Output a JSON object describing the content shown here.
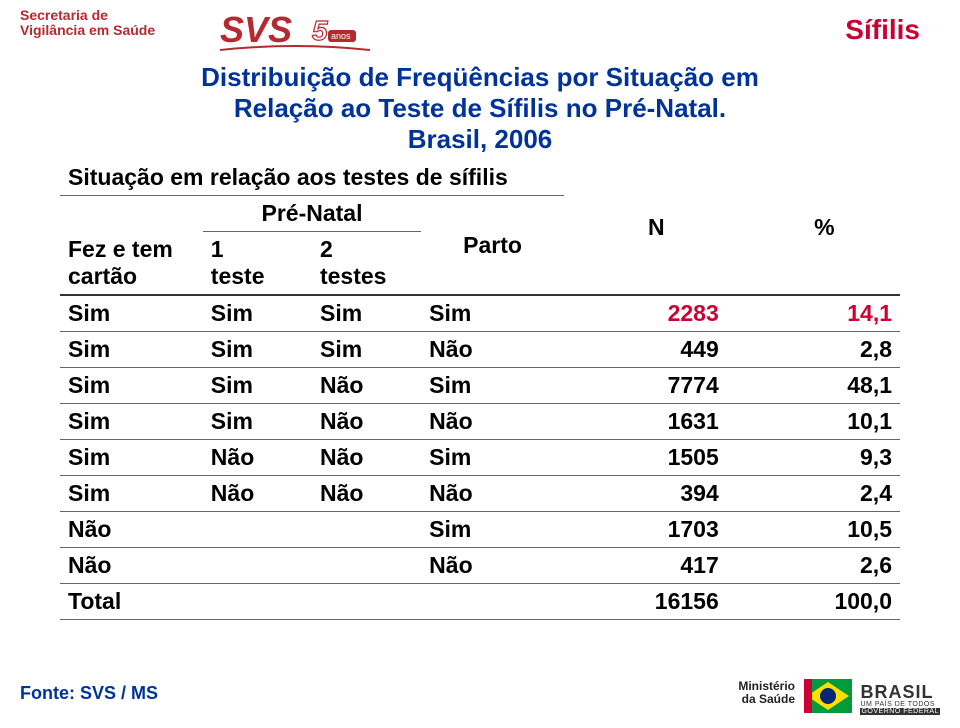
{
  "header": {
    "org_line1": "Secretaria de",
    "org_line2": "Vigilância em Saúde",
    "svs_text": "SVS",
    "svs_badge": "anos",
    "corner_badge": "Sífilis"
  },
  "title": {
    "line1": "Distribuição de Freqüências por Situação em",
    "line2": "Relação ao Teste de Sífilis no Pré-Natal.",
    "line3": "Brasil, 2006"
  },
  "table": {
    "group_header": "Situação em relação aos testes de sífilis",
    "sub_group": "Pré-Natal",
    "col1_line1": "Fez e tem",
    "col1_line2": "cartão",
    "col2_line1": "1",
    "col2_line2": "teste",
    "col3_line1": "2",
    "col3_line2": "testes",
    "col4": "Parto",
    "col5": "N",
    "col6": "%",
    "rows": [
      {
        "c1": "Sim",
        "c2": "Sim",
        "c3": "Sim",
        "c4": "Sim",
        "n": "2283",
        "p": "14,1",
        "highlight": true
      },
      {
        "c1": "Sim",
        "c2": "Sim",
        "c3": "Sim",
        "c4": "Não",
        "n": "449",
        "p": "2,8",
        "highlight": false
      },
      {
        "c1": "Sim",
        "c2": "Sim",
        "c3": "Não",
        "c4": "Sim",
        "n": "7774",
        "p": "48,1",
        "highlight": false
      },
      {
        "c1": "Sim",
        "c2": "Sim",
        "c3": "Não",
        "c4": "Não",
        "n": "1631",
        "p": "10,1",
        "highlight": false
      },
      {
        "c1": "Sim",
        "c2": "Não",
        "c3": "Não",
        "c4": "Sim",
        "n": "1505",
        "p": "9,3",
        "highlight": false
      },
      {
        "c1": "Sim",
        "c2": "Não",
        "c3": "Não",
        "c4": "Não",
        "n": "394",
        "p": "2,4",
        "highlight": false
      },
      {
        "c1": "Não",
        "c2": "",
        "c3": "",
        "c4": "Sim",
        "n": "1703",
        "p": "10,5",
        "highlight": false
      },
      {
        "c1": "Não",
        "c2": "",
        "c3": "",
        "c4": "Não",
        "n": "417",
        "p": "2,6",
        "highlight": false
      },
      {
        "c1": "Total",
        "c2": "",
        "c3": "",
        "c4": "",
        "n": "16156",
        "p": "100,0",
        "highlight": false
      }
    ]
  },
  "colors": {
    "title": "#003399",
    "highlight": "#cc0033",
    "org": "#b8292f",
    "text": "#000000"
  },
  "source": "Fonte: SVS / MS",
  "footer": {
    "ministry_l1": "Ministério",
    "ministry_l2": "da Saúde",
    "brasil": "BRASIL",
    "tagline1": "UM PAÍS DE TODOS",
    "tagline2": "GOVERNO FEDERAL"
  }
}
